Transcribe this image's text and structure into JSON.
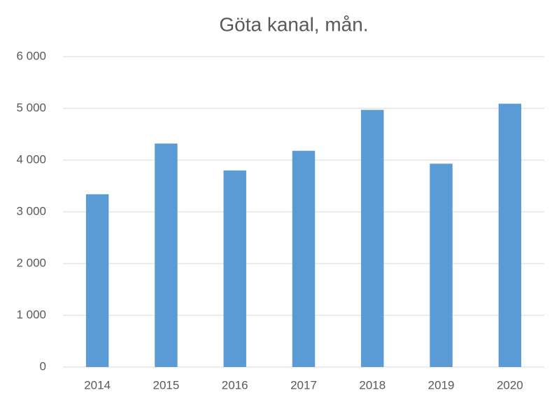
{
  "chart_data": {
    "type": "bar",
    "title": "Göta kanal, mån.",
    "categories": [
      "2014",
      "2015",
      "2016",
      "2017",
      "2018",
      "2019",
      "2020"
    ],
    "values": [
      3340,
      4320,
      3800,
      4180,
      4970,
      3930,
      5090
    ],
    "color": "#5b9bd5",
    "ylim": [
      0,
      6000
    ],
    "yticks": [
      0,
      {
        "value": 1000,
        "label": "1 000"
      },
      {
        "value": 2000,
        "label": "2 000"
      },
      {
        "value": 3000,
        "label": "3 000"
      },
      {
        "value": 4000,
        "label": "4 000"
      },
      {
        "value": 5000,
        "label": "5 000"
      },
      {
        "value": 6000,
        "label": "6 000"
      }
    ],
    "grid": true
  }
}
